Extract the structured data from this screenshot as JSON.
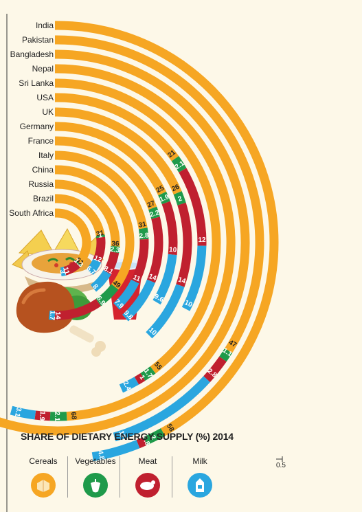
{
  "chart_data": {
    "type": "radial-stacked-bar",
    "title": "SHARE OF DIETARY ENERGY SUPPLY (%) 2014",
    "scale_note": "0.5",
    "series": [
      {
        "name": "Cereals",
        "color": "#f6a623",
        "icon": "grain-icon"
      },
      {
        "name": "Vegetables",
        "color": "#1f9a4a",
        "icon": "pepper-icon"
      },
      {
        "name": "Meat",
        "color": "#c0202f",
        "icon": "chicken-icon"
      },
      {
        "name": "Milk",
        "color": "#2aa6df",
        "icon": "milk-carton-icon"
      }
    ],
    "categories": [
      "India",
      "Pakistan",
      "Bangladesh",
      "Nepal",
      "Sri Lanka",
      "USA",
      "UK",
      "Germany",
      "France",
      "Italy",
      "China",
      "Russia",
      "Brazil",
      "South Africa"
    ],
    "rows": [
      {
        "country": "India",
        "cereals": 58,
        "vegetables": 2,
        "meat": 0.8,
        "milk": 4.8
      },
      {
        "country": "Pakistan",
        "cereals": 47,
        "vegetables": 1.1,
        "meat": 2.8,
        "milk": 12
      },
      {
        "country": "Bangladesh",
        "cereals": 81,
        "vegetables": 0.8,
        "meat": 0.8,
        "milk": 1.3
      },
      {
        "country": "Nepal",
        "cereals": 68,
        "vegetables": 2.1,
        "meat": 1.9,
        "milk": 3.1
      },
      {
        "country": "Sri Lanka",
        "cereals": 55,
        "vegetables": 1.7,
        "meat": 1,
        "milk": 2.4
      },
      {
        "country": "USA",
        "cereals": 21,
        "vegetables": 2.1,
        "meat": 12,
        "milk": 10
      },
      {
        "country": "UK",
        "cereals": 26,
        "vegetables": 2,
        "meat": 14,
        "milk": 10
      },
      {
        "country": "Germany",
        "cereals": 25,
        "vegetables": 1.9,
        "meat": 10,
        "milk": 9.6
      },
      {
        "country": "France",
        "cereals": 27,
        "vegetables": 2.2,
        "meat": 14,
        "milk": 9.8
      },
      {
        "country": "Italy",
        "cereals": 31,
        "vegetables": 2.8,
        "meat": 11,
        "milk": 7.9
      },
      {
        "country": "China",
        "cereals": 49,
        "vegetables": 6.9,
        "meat": 14,
        "milk": 1.7
      },
      {
        "country": "Russia",
        "cereals": 36,
        "vegetables": 2.3,
        "meat": 8.1,
        "milk": 8
      },
      {
        "country": "Brazil",
        "cereals": 31,
        "vegetables": 1,
        "meat": 12,
        "milk": 6.7
      },
      {
        "country": "South Africa",
        "cereals": 51,
        "vegetables": 1.3,
        "meat": 11,
        "milk": 3
      }
    ]
  }
}
